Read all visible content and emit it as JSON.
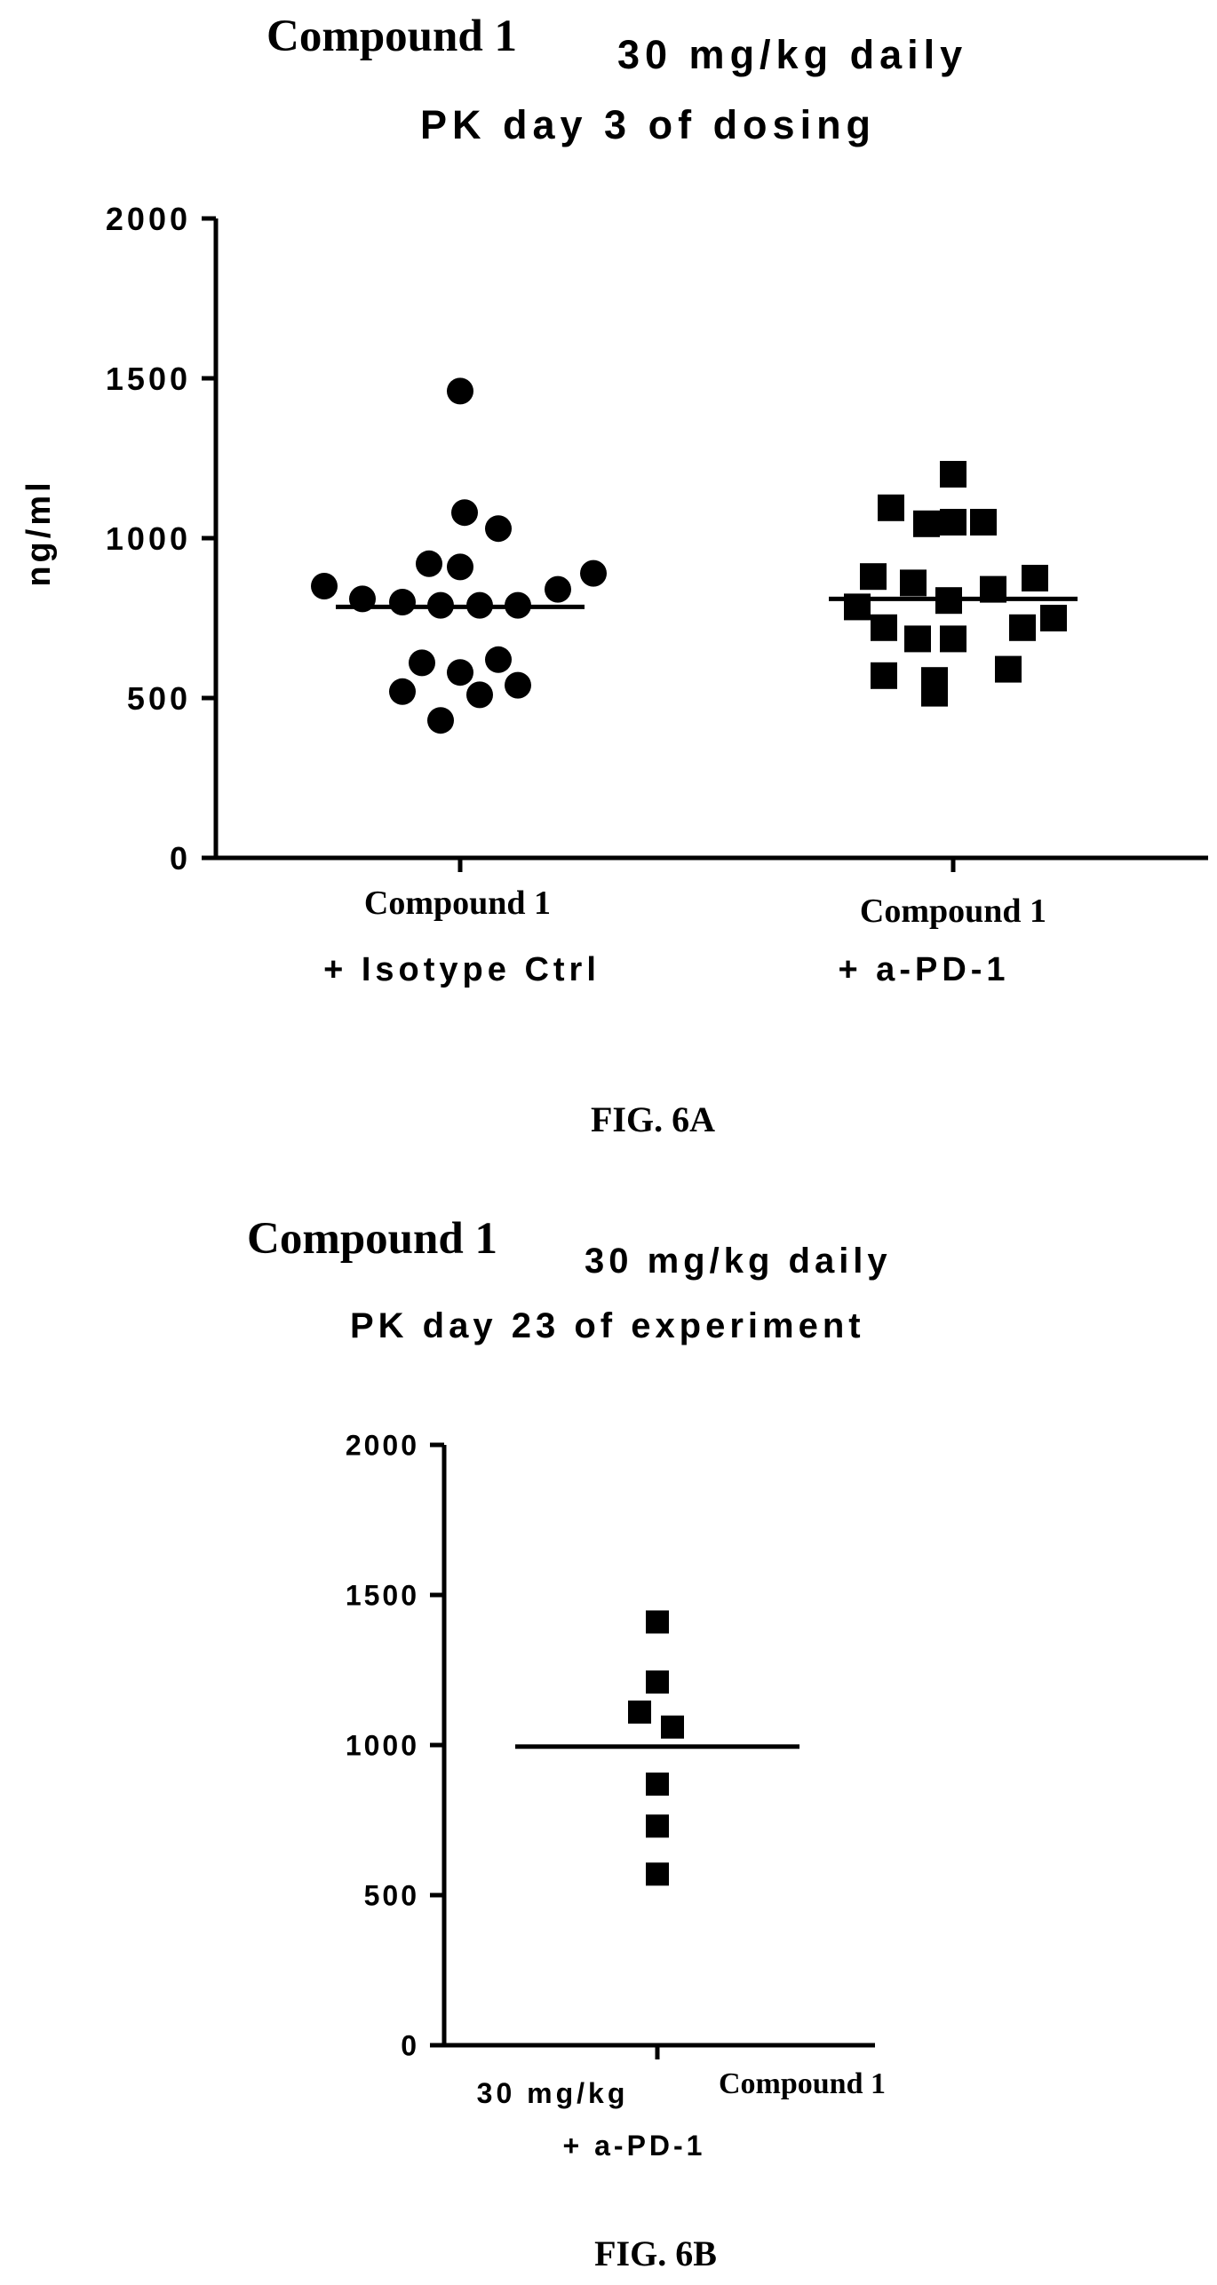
{
  "figures": [
    {
      "label": "FIG. 6A"
    },
    {
      "label": "FIG. 6B"
    }
  ],
  "chart_data": [
    {
      "type": "scatter",
      "title": "Compound 1",
      "subtitle_lines": [
        "30 mg/kg daily",
        "PK day 3 of dosing"
      ],
      "ylabel": "ng/ml",
      "ylim": [
        0,
        2000
      ],
      "yticks": [
        "2000",
        "1500",
        "1000",
        "500",
        "0"
      ],
      "grid": false,
      "categories": [
        {
          "lines": [
            "Compound 1",
            "+ Isotype Ctrl"
          ]
        },
        {
          "lines": [
            "Compound 1",
            "+ a-PD-1"
          ]
        }
      ],
      "series": [
        {
          "marker": "circle",
          "values": [
            1460,
            1080,
            1030,
            920,
            910,
            890,
            850,
            840,
            810,
            800,
            790,
            790,
            790,
            620,
            610,
            580,
            540,
            520,
            510,
            430
          ],
          "mean": 785
        },
        {
          "marker": "square",
          "values": [
            1200,
            1095,
            1050,
            1045,
            1050,
            880,
            875,
            860,
            840,
            805,
            785,
            750,
            720,
            720,
            685,
            685,
            590,
            570,
            555,
            515
          ],
          "mean": 810
        }
      ]
    },
    {
      "type": "scatter",
      "title": "Compound 1",
      "subtitle_lines": [
        "30 mg/kg daily",
        "PK day 23 of experiment"
      ],
      "ylim": [
        0,
        2000
      ],
      "yticks": [
        "2000",
        "1500",
        "1000",
        "500",
        "0"
      ],
      "grid": false,
      "categories": [
        {
          "lines": [
            "30 mg/kg",
            "+ a-PD-1"
          ],
          "extra": "Compound 1"
        }
      ],
      "series": [
        {
          "marker": "square",
          "values": [
            1410,
            1210,
            1110,
            1060,
            870,
            730,
            570
          ],
          "mean": 995
        }
      ]
    }
  ]
}
